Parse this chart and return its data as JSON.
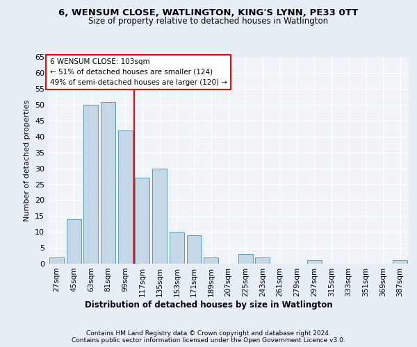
{
  "title1": "6, WENSUM CLOSE, WATLINGTON, KING'S LYNN, PE33 0TT",
  "title2": "Size of property relative to detached houses in Watlington",
  "xlabel": "Distribution of detached houses by size in Watlington",
  "ylabel": "Number of detached properties",
  "categories": [
    "27sqm",
    "45sqm",
    "63sqm",
    "81sqm",
    "99sqm",
    "117sqm",
    "135sqm",
    "153sqm",
    "171sqm",
    "189sqm",
    "207sqm",
    "225sqm",
    "243sqm",
    "261sqm",
    "279sqm",
    "297sqm",
    "315sqm",
    "333sqm",
    "351sqm",
    "369sqm",
    "387sqm"
  ],
  "values": [
    2,
    14,
    50,
    51,
    42,
    27,
    30,
    10,
    9,
    2,
    0,
    3,
    2,
    0,
    0,
    1,
    0,
    0,
    0,
    0,
    1
  ],
  "bar_color": "#c5d8e8",
  "bar_edge_color": "#5b9ab5",
  "vline_x": 4.5,
  "vline_color": "red",
  "annotation_text": "6 WENSUM CLOSE: 103sqm\n← 51% of detached houses are smaller (124)\n49% of semi-detached houses are larger (120) →",
  "annotation_box_color": "white",
  "annotation_box_edge": "red",
  "ylim": [
    0,
    65
  ],
  "yticks": [
    0,
    5,
    10,
    15,
    20,
    25,
    30,
    35,
    40,
    45,
    50,
    55,
    60,
    65
  ],
  "footer1": "Contains HM Land Registry data © Crown copyright and database right 2024.",
  "footer2": "Contains public sector information licensed under the Open Government Licence v3.0.",
  "bg_color": "#e8eef5",
  "plot_bg_color": "#f0f4f8"
}
